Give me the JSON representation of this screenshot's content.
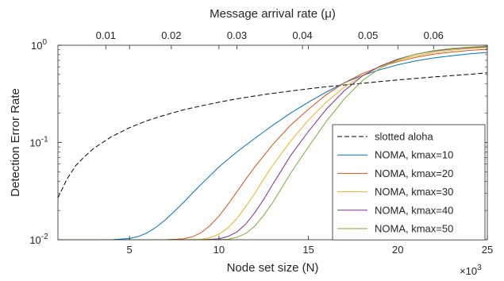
{
  "chart_data": {
    "type": "line",
    "title": "",
    "xlabel": "Node set size (N)",
    "x_exponent_label": "×10",
    "x_exponent_power": "3",
    "x_ticks": [
      5,
      10,
      15,
      20,
      25
    ],
    "x_tick_labels": [
      "5",
      "10",
      "15",
      "20",
      "25"
    ],
    "xlim": [
      1,
      25
    ],
    "ylabel": "Detection Error Rate",
    "yscale": "log",
    "ylim": [
      0.01,
      1
    ],
    "y_ticks": [
      0.01,
      0.1,
      1
    ],
    "y_tick_base": "10",
    "y_tick_powers": [
      "-2",
      "-1",
      "0"
    ],
    "top_xlabel": "Message arrival rate (μ)",
    "top_x_ticks": [
      0.01,
      0.02,
      0.03,
      0.04,
      0.05,
      0.06
    ],
    "top_x_tick_labels": [
      "0.01",
      "0.02",
      "0.03",
      "0.04",
      "0.05",
      "0.06"
    ],
    "top_xlim": [
      0.0027,
      0.0682
    ],
    "legend": {
      "placement": "lower-right",
      "entries": [
        "slotted aloha",
        "NOMA, kmax=10",
        "NOMA, kmax=20",
        "NOMA, kmax=30",
        "NOMA, kmax=40",
        "NOMA, kmax=50"
      ]
    },
    "series": [
      {
        "name": "slotted aloha",
        "color": "#000000",
        "dash": true,
        "x": [
          1,
          1.5,
          2,
          2.5,
          3,
          4,
          5,
          6,
          7,
          8,
          9,
          10,
          11,
          12,
          13,
          14,
          15,
          16,
          17,
          18,
          19,
          20,
          21,
          22,
          23,
          24,
          25
        ],
        "y": [
          0.027,
          0.042,
          0.058,
          0.072,
          0.087,
          0.115,
          0.142,
          0.168,
          0.192,
          0.216,
          0.238,
          0.26,
          0.281,
          0.301,
          0.32,
          0.338,
          0.356,
          0.374,
          0.39,
          0.406,
          0.423,
          0.44,
          0.456,
          0.472,
          0.487,
          0.503,
          0.52
        ]
      },
      {
        "name": "NOMA, kmax=10",
        "color": "#0072bd",
        "dash": false,
        "x": [
          1,
          3,
          4,
          5,
          5.5,
          6,
          6.5,
          7,
          7.5,
          8,
          8.5,
          9,
          10,
          11,
          12,
          13,
          14,
          15,
          16,
          17,
          18,
          19,
          20,
          21,
          22,
          23,
          24,
          25
        ],
        "y": [
          0.01,
          0.01,
          0.01,
          0.0103,
          0.0108,
          0.0118,
          0.0135,
          0.016,
          0.0195,
          0.024,
          0.03,
          0.037,
          0.056,
          0.08,
          0.11,
          0.15,
          0.2,
          0.26,
          0.33,
          0.41,
          0.49,
          0.56,
          0.63,
          0.69,
          0.74,
          0.78,
          0.815,
          0.845
        ]
      },
      {
        "name": "NOMA, kmax=20",
        "color": "#d95319",
        "dash": false,
        "x": [
          1,
          5,
          7,
          8,
          8.5,
          9,
          9.5,
          10,
          10.5,
          11,
          11.5,
          12,
          13,
          14,
          15,
          16,
          17,
          18,
          19,
          20,
          21,
          22,
          23,
          24,
          25
        ],
        "y": [
          0.01,
          0.01,
          0.01,
          0.0102,
          0.0107,
          0.0118,
          0.014,
          0.0175,
          0.023,
          0.031,
          0.042,
          0.056,
          0.095,
          0.15,
          0.22,
          0.31,
          0.41,
          0.51,
          0.6,
          0.68,
          0.75,
          0.81,
          0.85,
          0.885,
          0.91
        ]
      },
      {
        "name": "NOMA, kmax=30",
        "color": "#edb120",
        "dash": false,
        "x": [
          1,
          5,
          8,
          9,
          9.5,
          10,
          10.5,
          11,
          11.5,
          12,
          12.5,
          13,
          14,
          15,
          16,
          17,
          18,
          19,
          20,
          21,
          22,
          23,
          24,
          25
        ],
        "y": [
          0.01,
          0.01,
          0.01,
          0.0101,
          0.0105,
          0.0114,
          0.0132,
          0.0165,
          0.022,
          0.03,
          0.042,
          0.058,
          0.103,
          0.17,
          0.26,
          0.37,
          0.49,
          0.6,
          0.7,
          0.78,
          0.84,
          0.89,
          0.925,
          0.95
        ]
      },
      {
        "name": "NOMA, kmax=40",
        "color": "#7e2f8e",
        "dash": false,
        "x": [
          1,
          5,
          9,
          10,
          10.5,
          11,
          11.5,
          12,
          12.5,
          13,
          13.5,
          14,
          15,
          16,
          17,
          18,
          19,
          20,
          21,
          22,
          23,
          24,
          25
        ],
        "y": [
          0.01,
          0.01,
          0.01,
          0.0102,
          0.0108,
          0.012,
          0.0145,
          0.019,
          0.026,
          0.037,
          0.052,
          0.073,
          0.13,
          0.22,
          0.34,
          0.48,
          0.61,
          0.72,
          0.81,
          0.87,
          0.915,
          0.945,
          0.965
        ]
      },
      {
        "name": "NOMA, kmax=50",
        "color": "#77ac30",
        "dash": false,
        "x": [
          1,
          5,
          9.5,
          10.5,
          11,
          11.5,
          12,
          12.5,
          13,
          13.5,
          14,
          14.5,
          15,
          16,
          17,
          18,
          19,
          20,
          21,
          22,
          23,
          24,
          25
        ],
        "y": [
          0.01,
          0.01,
          0.01,
          0.0101,
          0.0106,
          0.0116,
          0.0138,
          0.0178,
          0.024,
          0.034,
          0.048,
          0.066,
          0.09,
          0.165,
          0.28,
          0.43,
          0.58,
          0.71,
          0.81,
          0.88,
          0.925,
          0.955,
          0.975
        ]
      }
    ]
  }
}
